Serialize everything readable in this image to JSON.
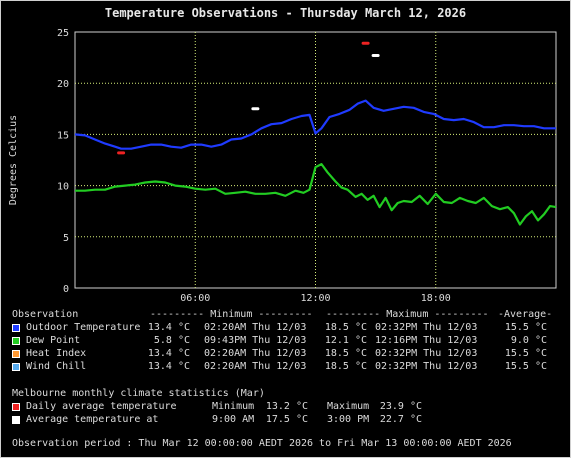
{
  "title": "Temperature Observations - Thursday March 12, 2026",
  "legend": {
    "headers": {
      "observation": "Observation",
      "minimum": "--------- Minimum ---------",
      "maximum": "--------- Maximum ---------",
      "average": "-Average-"
    },
    "rows": [
      {
        "label": "Outdoor Temperature",
        "color": "#1f3bff",
        "min_val": "13.4 °C",
        "min_time": "02:20AM Thu 12/03",
        "max_val": "18.5 °C",
        "max_time": "02:32PM Thu 12/03",
        "avg": "15.5 °C"
      },
      {
        "label": "Dew Point",
        "color": "#22cc22",
        "min_val": "5.8 °C",
        "min_time": "09:43PM Thu 12/03",
        "max_val": "12.1 °C",
        "max_time": "12:16PM Thu 12/03",
        "avg": "9.0 °C"
      },
      {
        "label": "Heat Index",
        "color": "#ff9933",
        "min_val": "13.4 °C",
        "min_time": "02:20AM Thu 12/03",
        "max_val": "18.5 °C",
        "max_time": "02:32PM Thu 12/03",
        "avg": "15.5 °C"
      },
      {
        "label": "Wind Chill",
        "color": "#55aaee",
        "min_val": "13.4 °C",
        "min_time": "02:20AM Thu 12/03",
        "max_val": "18.5 °C",
        "max_time": "02:32PM Thu 12/03",
        "avg": "15.5 °C"
      }
    ]
  },
  "climate": {
    "heading": "Melbourne monthly climate statistics (Mar)",
    "rows": [
      {
        "label": "Daily average temperature",
        "color": "#ee2222",
        "c1": "Minimum",
        "c2": "13.2 °C",
        "c3": "Maximum",
        "c4": "23.9 °C"
      },
      {
        "label": "Average temperature at",
        "color": "#ffffff",
        "c1": "9:00 AM",
        "c2": "17.5 °C",
        "c3": "3:00 PM",
        "c4": "22.7 °C"
      }
    ]
  },
  "period": "Observation period : Thu Mar 12 00:00:00 AEDT 2026 to Fri Mar 13 00:00:00 AEDT 2026",
  "chart_data": {
    "type": "line",
    "ylabel": "Degrees Celcius",
    "xlabel": "",
    "ylim": [
      0,
      25
    ],
    "xlim": [
      0,
      24
    ],
    "x_unit": "hours since 00:00 Thu 12/03",
    "yticks": [
      "0",
      "5",
      "10",
      "15",
      "20",
      "25"
    ],
    "xticks": [
      {
        "value": 6,
        "label": "06:00"
      },
      {
        "value": 12,
        "label": "12:00"
      },
      {
        "value": 18,
        "label": "18:00"
      }
    ],
    "grid": true,
    "series": [
      {
        "name": "Outdoor Temperature",
        "color": "#1f3bff",
        "x": [
          0,
          0.5,
          1,
          1.5,
          2,
          2.3,
          2.8,
          3.3,
          3.8,
          4.3,
          4.8,
          5.3,
          5.8,
          6.3,
          6.8,
          7.3,
          7.8,
          8.3,
          8.8,
          9.3,
          9.8,
          10.3,
          10.8,
          11.3,
          11.7,
          12.0,
          12.3,
          12.7,
          13.2,
          13.7,
          14.1,
          14.5,
          14.9,
          15.4,
          15.9,
          16.4,
          16.9,
          17.4,
          17.9,
          18.4,
          18.9,
          19.4,
          19.9,
          20.4,
          20.9,
          21.4,
          21.9,
          22.4,
          22.9,
          23.4,
          24
        ],
        "values": [
          15.0,
          14.9,
          14.5,
          14.1,
          13.8,
          13.6,
          13.6,
          13.8,
          14.0,
          14.0,
          13.8,
          13.7,
          14.0,
          14.0,
          13.8,
          14.0,
          14.5,
          14.6,
          15.0,
          15.6,
          16.0,
          16.1,
          16.5,
          16.8,
          16.9,
          15.1,
          15.6,
          16.7,
          17.0,
          17.4,
          18.0,
          18.3,
          17.6,
          17.3,
          17.5,
          17.7,
          17.6,
          17.2,
          17.0,
          16.5,
          16.4,
          16.5,
          16.2,
          15.7,
          15.7,
          15.9,
          15.9,
          15.8,
          15.8,
          15.6,
          15.6
        ]
      },
      {
        "name": "Dew Point",
        "color": "#22cc22",
        "x": [
          0,
          0.5,
          1,
          1.5,
          2,
          2.5,
          3,
          3.5,
          4,
          4.5,
          5,
          5.5,
          6,
          6.5,
          7,
          7.5,
          8,
          8.5,
          9,
          9.5,
          10,
          10.5,
          11,
          11.4,
          11.7,
          12.0,
          12.3,
          12.6,
          13.0,
          13.3,
          13.6,
          14.0,
          14.3,
          14.6,
          14.9,
          15.2,
          15.5,
          15.8,
          16.1,
          16.4,
          16.8,
          17.2,
          17.6,
          18.0,
          18.4,
          18.8,
          19.2,
          19.6,
          20.0,
          20.4,
          20.8,
          21.2,
          21.6,
          21.9,
          22.2,
          22.5,
          22.8,
          23.1,
          23.4,
          23.7,
          24
        ],
        "values": [
          9.5,
          9.5,
          9.6,
          9.6,
          9.9,
          10.0,
          10.1,
          10.3,
          10.4,
          10.3,
          10.0,
          9.9,
          9.7,
          9.6,
          9.7,
          9.2,
          9.3,
          9.4,
          9.2,
          9.2,
          9.3,
          9.0,
          9.5,
          9.3,
          9.6,
          11.8,
          12.1,
          11.3,
          10.4,
          9.8,
          9.6,
          8.9,
          9.2,
          8.6,
          9.0,
          7.9,
          8.8,
          7.6,
          8.3,
          8.5,
          8.4,
          9.0,
          8.2,
          9.2,
          8.4,
          8.3,
          8.8,
          8.5,
          8.3,
          8.8,
          8.0,
          7.7,
          7.9,
          7.3,
          6.2,
          7.0,
          7.5,
          6.6,
          7.2,
          8.0,
          7.9
        ]
      }
    ],
    "points": [
      {
        "name": "Daily average temperature (Minimum)",
        "x": 2.3,
        "value": 13.2,
        "color": "#ee2222"
      },
      {
        "name": "Daily average temperature (Maximum)",
        "x": 14.5,
        "value": 23.9,
        "color": "#ee2222"
      },
      {
        "name": "Average temperature at 9:00 AM",
        "x": 9.0,
        "value": 17.5,
        "color": "#ffffff"
      },
      {
        "name": "Average temperature at 3:00 PM",
        "x": 15.0,
        "value": 22.7,
        "color": "#ffffff"
      }
    ]
  }
}
